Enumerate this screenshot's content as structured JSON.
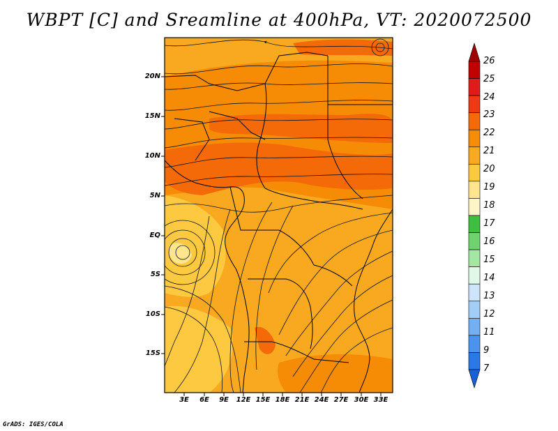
{
  "title": "WBPT [C] and Sreamline at 400hPa, VT: 2020072500",
  "credit": "GrADS: IGES/COLA",
  "lat_labels": [
    "20N",
    "15N",
    "10N",
    "5N",
    "EQ",
    "5S",
    "10S",
    "15S"
  ],
  "lon_labels": [
    "3E",
    "6E",
    "9E",
    "12E",
    "15E",
    "18E",
    "21E",
    "24E",
    "27E",
    "30E",
    "33E"
  ],
  "colorbar": {
    "labels": [
      "26",
      "25",
      "24",
      "23",
      "22",
      "21",
      "20",
      "19",
      "18",
      "17",
      "16",
      "15",
      "14",
      "13",
      "12",
      "11",
      "9",
      "7"
    ],
    "colors": [
      "#a00000",
      "#c00000",
      "#e11b1b",
      "#ee3a12",
      "#f46a08",
      "#f68b06",
      "#f9a91f",
      "#fcc940",
      "#fde68e",
      "#fdf5c5",
      "#3fbf3f",
      "#6ed36e",
      "#a4e6a4",
      "#e0f8e8",
      "#cde4fa",
      "#a2cdf7",
      "#72b0f2",
      "#4b93ee",
      "#2a77e6",
      "#1a5fd8"
    ]
  },
  "field_colors": {
    "c19": "#fde68e",
    "c20": "#fcc940",
    "c21": "#f9a91f",
    "c22": "#f68b06",
    "c23": "#f46a08",
    "c24": "#ee3a12"
  }
}
